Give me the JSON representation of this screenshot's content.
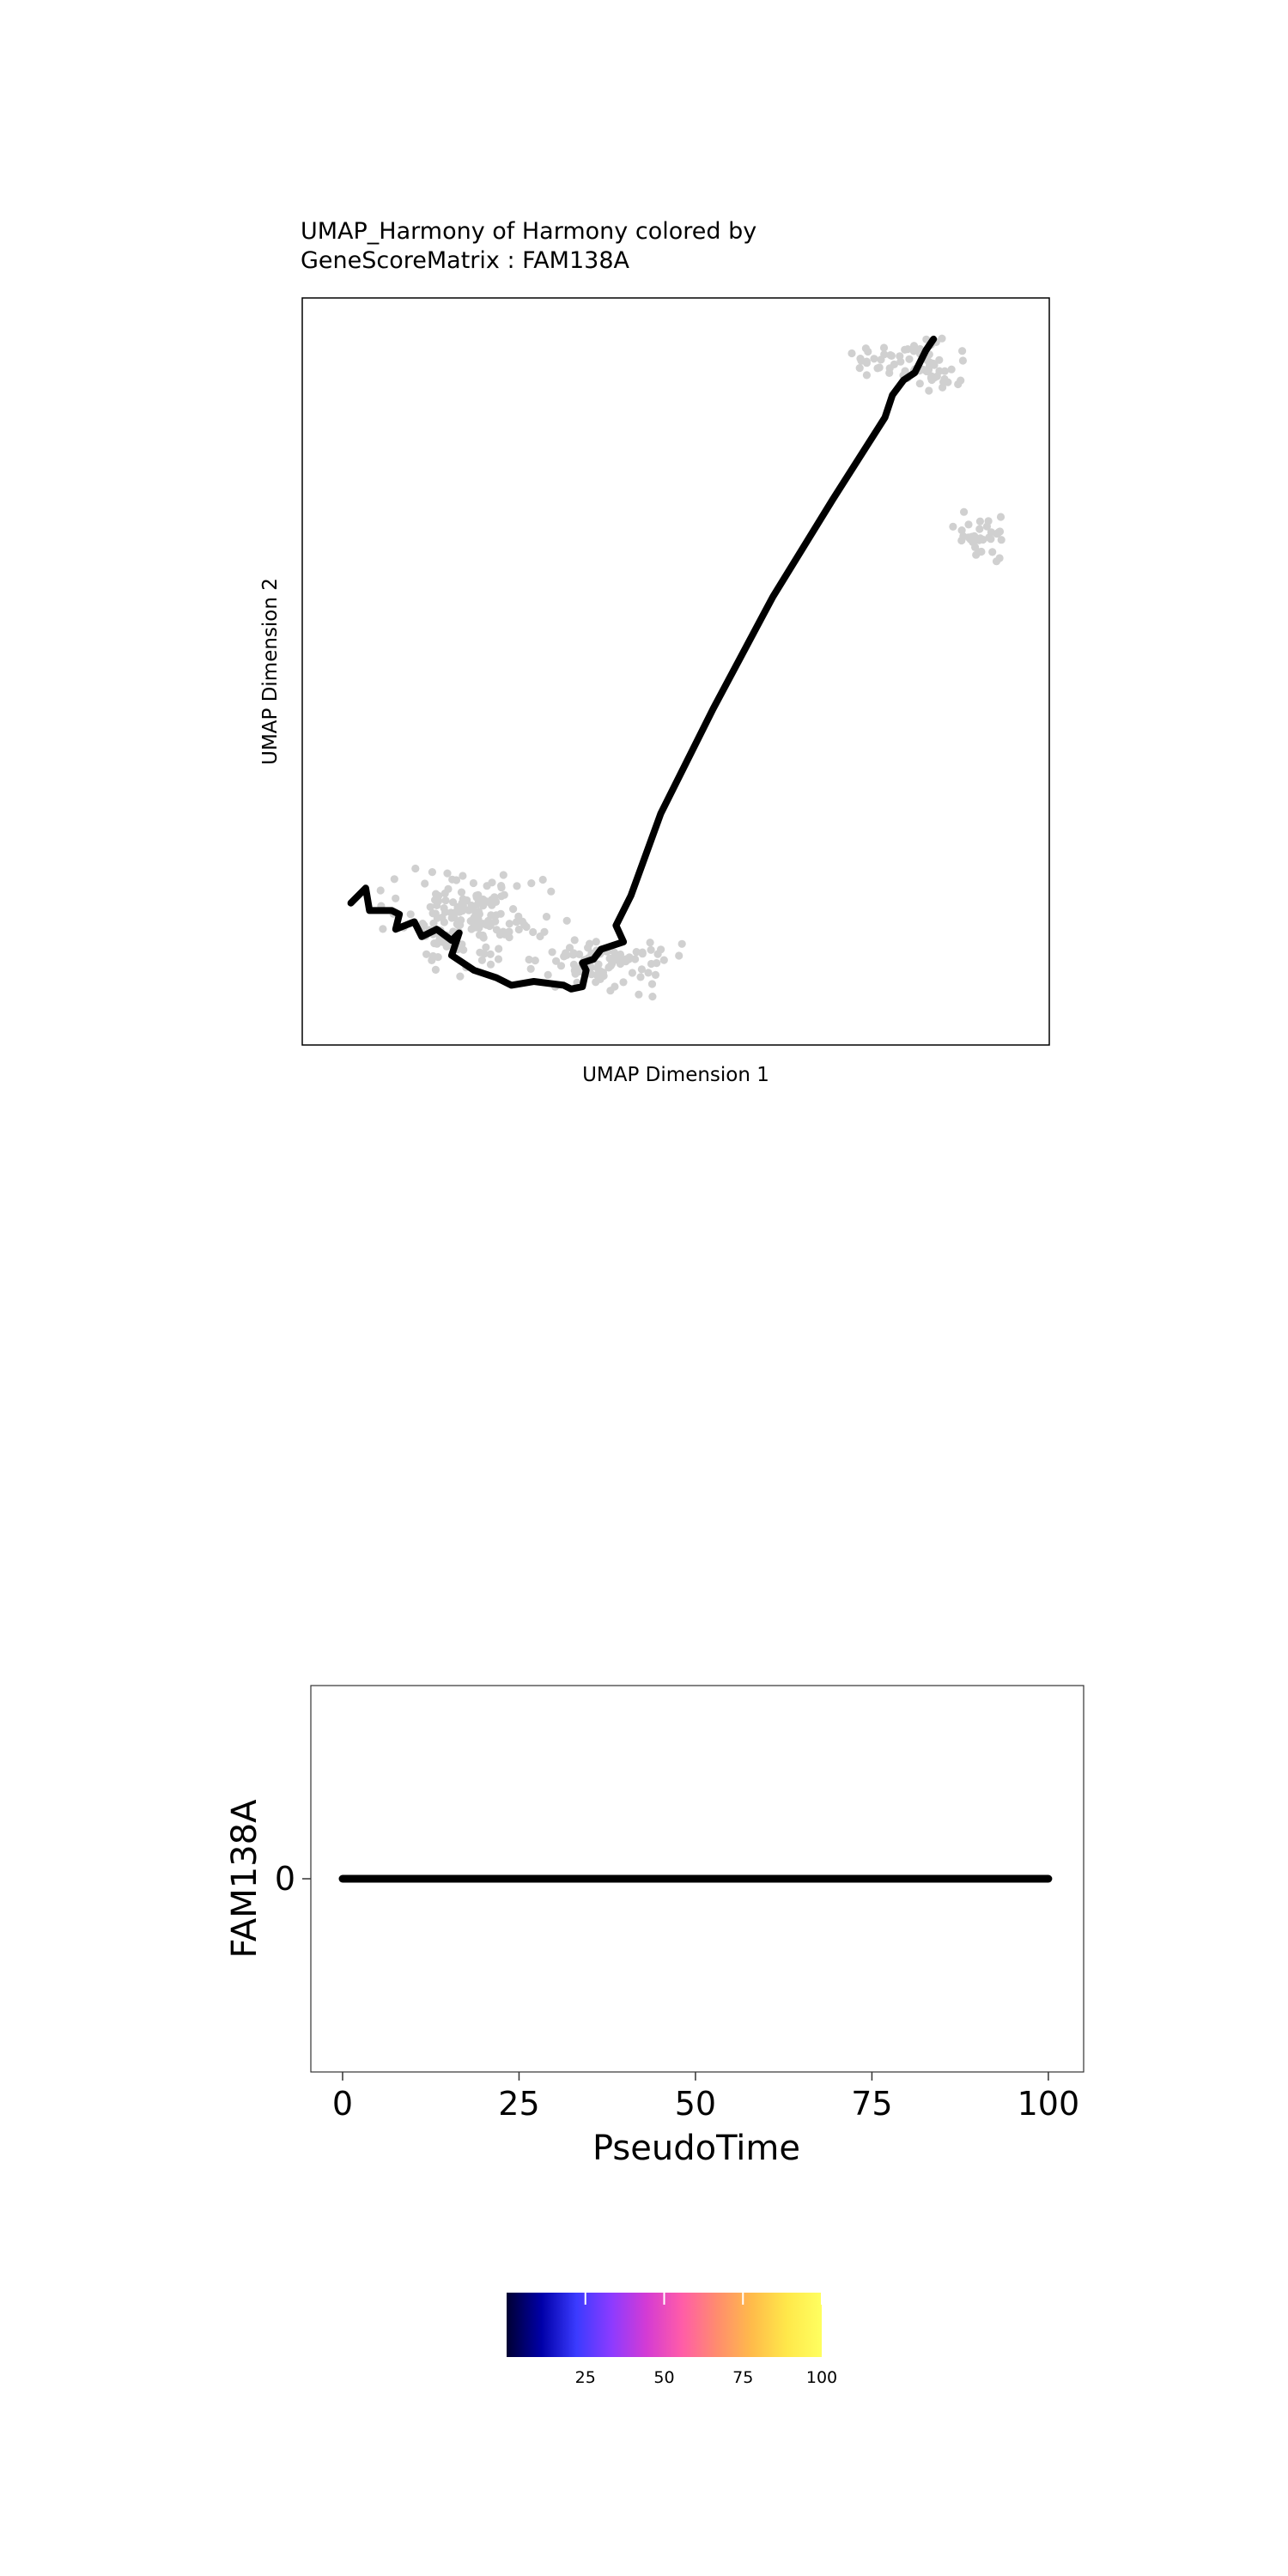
{
  "chart_data": [
    {
      "type": "scatter",
      "title_line1": "UMAP_Harmony of Harmony colored by",
      "title_line2": "GeneScoreMatrix : FAM138A",
      "xlabel": "UMAP Dimension 1",
      "ylabel": "UMAP Dimension 2",
      "xlim": [
        0,
        100
      ],
      "ylim": [
        0,
        100
      ],
      "point_color": "#d0d0d0",
      "trajectory_color": "#000000",
      "clusters": [
        {
          "name": "",
          "center": [
            22,
            17
          ],
          "spread": [
            10,
            5.5
          ],
          "n": 170
        },
        {
          "name": "",
          "center": [
            41,
            11
          ],
          "spread": [
            8,
            3.5
          ],
          "n": 90
        },
        {
          "name": "",
          "center": [
            82,
            91
          ],
          "spread": [
            7,
            3.2
          ],
          "n": 70
        },
        {
          "name": "",
          "center": [
            91,
            68
          ],
          "spread": [
            3.2,
            2.6
          ],
          "n": 35
        }
      ],
      "trajectory": [
        [
          6.5,
          19
        ],
        [
          8.5,
          21
        ],
        [
          9,
          18
        ],
        [
          12,
          18
        ],
        [
          13,
          17.5
        ],
        [
          12.5,
          15.5
        ],
        [
          15,
          16.5
        ],
        [
          16,
          14.5
        ],
        [
          18,
          15.5
        ],
        [
          20,
          14
        ],
        [
          21,
          15
        ],
        [
          20,
          12
        ],
        [
          23,
          10
        ],
        [
          26,
          9
        ],
        [
          28,
          8
        ],
        [
          31,
          8.5
        ],
        [
          35,
          8
        ],
        [
          36,
          7.5
        ],
        [
          37.5,
          7.8
        ],
        [
          38,
          10
        ],
        [
          37.5,
          11
        ],
        [
          39,
          11.5
        ],
        [
          40,
          12.8
        ],
        [
          43,
          13.8
        ],
        [
          42,
          16
        ],
        [
          44,
          20
        ],
        [
          48,
          31
        ],
        [
          55,
          45
        ],
        [
          63,
          60
        ],
        [
          71,
          73
        ],
        [
          78,
          84
        ],
        [
          79,
          87
        ],
        [
          80.5,
          89
        ],
        [
          82,
          90
        ],
        [
          83.5,
          93
        ],
        [
          84.5,
          94.5
        ]
      ]
    },
    {
      "type": "line",
      "xlabel": "PseudoTime",
      "ylabel": "FAM138A",
      "x_ticks": [
        "0",
        "25",
        "50",
        "75",
        "100"
      ],
      "y_ticks": [
        "0"
      ],
      "xlim": [
        -4.5,
        105
      ],
      "ylim": [
        -1,
        1
      ],
      "series": [
        {
          "x": [
            0,
            25,
            50,
            75,
            100
          ],
          "values": [
            0,
            0,
            0,
            0,
            0
          ]
        }
      ]
    },
    {
      "type": "colorbar",
      "ticks": [
        "25",
        "50",
        "75",
        "100"
      ],
      "tick_values": [
        25,
        50,
        75,
        100
      ],
      "range": [
        0,
        100
      ],
      "palette": [
        "#000033",
        "#0000a8",
        "#3b3bff",
        "#8c3bff",
        "#d43bd4",
        "#ff5ca8",
        "#ff8c6e",
        "#ffbb4a",
        "#ffe84a",
        "#ffff60"
      ]
    }
  ]
}
